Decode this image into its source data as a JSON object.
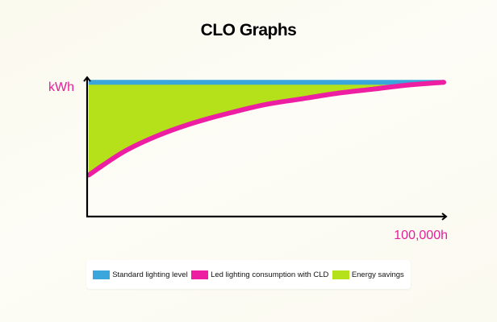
{
  "chart_data": {
    "type": "area",
    "title": "CLO Graphs",
    "ylabel": "kWh",
    "xlabel": "100,000h",
    "xlim": [
      0,
      100000
    ],
    "ylim": [
      0,
      100
    ],
    "grid": false,
    "legend_position": "bottom",
    "series": [
      {
        "name": "Standard lighting level",
        "color": "#3aa6dc",
        "x": [
          0,
          100000
        ],
        "y": [
          97,
          97
        ]
      },
      {
        "name": "Led lighting consumption with CLD",
        "color": "#ee1ea3",
        "x": [
          0,
          10000,
          20000,
          30000,
          40000,
          50000,
          60000,
          70000,
          80000,
          90000,
          100000
        ],
        "y": [
          30,
          47,
          59,
          68,
          75,
          81,
          85,
          89,
          92,
          95,
          97
        ]
      },
      {
        "name": "Energy savings",
        "color": "#b5e11a"
      }
    ]
  }
}
